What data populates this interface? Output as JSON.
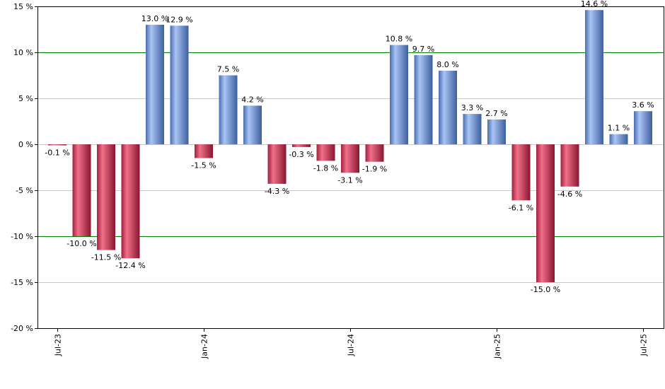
{
  "chart_data": {
    "type": "bar",
    "title": "",
    "xlabel": "",
    "ylabel": "",
    "ylim": [
      -20,
      15
    ],
    "y_ticks": [
      15,
      10,
      5,
      0,
      -5,
      -10,
      -15,
      -20
    ],
    "y_tick_labels": [
      "15 %",
      "10 %",
      "5 %",
      "0 %",
      "-5 %",
      "-10 %",
      "-15 %",
      "-20 %"
    ],
    "x_tick_labels": [
      "Jul-23",
      "Jan-24",
      "Jul-24",
      "Jan-25",
      "Jul-25"
    ],
    "reference_lines": [
      10,
      -10
    ],
    "categories": [
      "Jul-23",
      "Aug-23",
      "Sep-23",
      "Oct-23",
      "Nov-23",
      "Dec-23",
      "Jan-24",
      "Feb-24",
      "Mar-24",
      "Apr-24",
      "May-24",
      "Jun-24",
      "Jul-24",
      "Aug-24",
      "Sep-24",
      "Oct-24",
      "Nov-24",
      "Dec-24",
      "Jan-25",
      "Feb-25",
      "Mar-25",
      "Apr-25",
      "May-25",
      "Jun-25",
      "Jul-25"
    ],
    "values": [
      -0.1,
      -10.0,
      -11.5,
      -12.4,
      13.0,
      12.9,
      -1.5,
      7.5,
      4.2,
      -4.3,
      -0.3,
      -1.8,
      -3.1,
      -1.9,
      10.8,
      9.7,
      8.0,
      3.3,
      2.7,
      -6.1,
      -15.0,
      -4.6,
      14.6,
      1.1,
      3.6
    ],
    "data_labels": [
      "-0.1 %",
      "-10.0 %",
      "-11.5 %",
      "-12.4 %",
      "13.0 %",
      "12.9 %",
      "-1.5 %",
      "7.5 %",
      "4.2 %",
      "-4.3 %",
      "-0.3 %",
      "-1.8 %",
      "-3.1 %",
      "-1.9 %",
      "10.8 %",
      "9.7 %",
      "8.0 %",
      "3.3 %",
      "2.7 %",
      "-6.1 %",
      "-15.0 %",
      "-4.6 %",
      "14.6 %",
      "1.1 %",
      "3.6 %"
    ],
    "colors": {
      "positive_light": "#a9c4f5",
      "positive_dark": "#3d5f9e",
      "negative_light": "#f07088",
      "negative_dark": "#8a1530",
      "reference_line": "#008000",
      "grid": "#c8c8c8",
      "axis": "#000000"
    }
  }
}
